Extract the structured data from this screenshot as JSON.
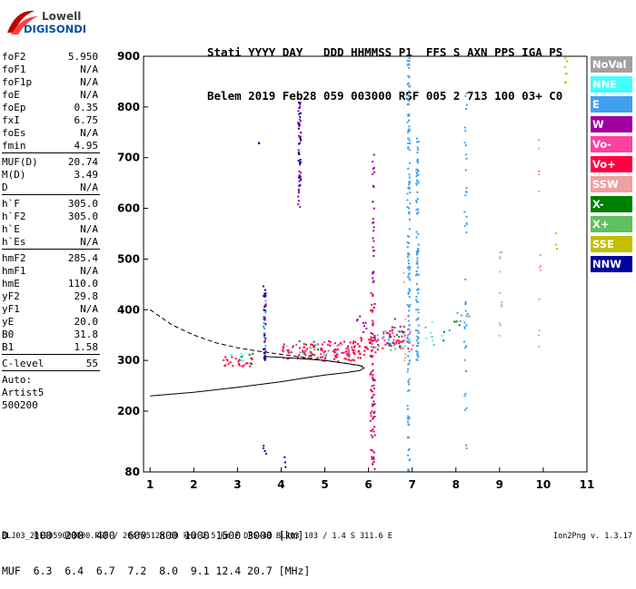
{
  "logo": {
    "line1": "Lowell",
    "line2": "DIGISONDE"
  },
  "header": {
    "line1": "Stati YYYY DAY   DDD HHMMSS P1  FFS S AXN PPS IGA PS",
    "line2": "Belem 2019 Feb28 059 003000 RSF 005 2 713 100 03+ C0"
  },
  "params": [
    {
      "name": "foF2",
      "value": "5.950"
    },
    {
      "name": "foF1",
      "value": "N/A"
    },
    {
      "name": "foF1p",
      "value": "N/A"
    },
    {
      "name": "foE",
      "value": "N/A"
    },
    {
      "name": "foEp",
      "value": "0.35"
    },
    {
      "name": "fxI",
      "value": "6.75"
    },
    {
      "name": "foEs",
      "value": "N/A"
    },
    {
      "name": "fmin",
      "value": "4.95"
    },
    {
      "name": "MUF(D)",
      "value": "20.74"
    },
    {
      "name": "M(D)",
      "value": "3.49"
    },
    {
      "name": "D",
      "value": "N/A"
    },
    {
      "name": "h`F",
      "value": "305.0"
    },
    {
      "name": "h`F2",
      "value": "305.0"
    },
    {
      "name": "h`E",
      "value": "N/A"
    },
    {
      "name": "h`Es",
      "value": "N/A"
    },
    {
      "name": "hmF2",
      "value": "285.4"
    },
    {
      "name": "hmF1",
      "value": "N/A"
    },
    {
      "name": "hmE",
      "value": "110.0"
    },
    {
      "name": "yF2",
      "value": "29.8"
    },
    {
      "name": "yF1",
      "value": "N/A"
    },
    {
      "name": "yE",
      "value": "20.0"
    },
    {
      "name": "B0",
      "value": "31.8"
    },
    {
      "name": "B1",
      "value": "1.58"
    },
    {
      "name": "C-level",
      "value": "55"
    },
    {
      "name": "Auto:",
      "value": ""
    },
    {
      "name": "Artist5",
      "value": ""
    },
    {
      "name": "500200",
      "value": ""
    }
  ],
  "legend": [
    {
      "label": "NoVal",
      "color": "#a0a0a0"
    },
    {
      "label": "NNE",
      "color": "#40ffff"
    },
    {
      "label": "E",
      "color": "#40a0f0"
    },
    {
      "label": "W",
      "color": "#a000a0"
    },
    {
      "label": "Vo-",
      "color": "#ff40a0"
    },
    {
      "label": "Vo+",
      "color": "#ff0040"
    },
    {
      "label": "SSW",
      "color": "#f0a0a0"
    },
    {
      "label": "X-",
      "color": "#008000"
    },
    {
      "label": "X+",
      "color": "#60c060"
    },
    {
      "label": "SSE",
      "color": "#c0c000"
    },
    {
      "label": "NNW",
      "color": "#0000a0"
    }
  ],
  "muf_table": {
    "d_label": "D",
    "d_values": "100  200  400  600  800 1000 1500 3000 [km]",
    "muf_label": "MUF",
    "muf_values": "6.3  6.4  6.7  7.2  8.0  9.1 12.4 20.7 [MHz]"
  },
  "footer": "BLJ03_2019059003000.RSF / 204fx512h 50 kHz 2.5 km / DPS-4D BLJ03 103 / 1.4 S 311.6 E",
  "version": "Ion2Png v. 1.3.17",
  "chart_data": {
    "type": "scatter",
    "x_ticks": [
      "1",
      "2",
      "3",
      "4",
      "5",
      "6",
      "7",
      "8",
      "9",
      "10",
      "11"
    ],
    "y_ticks": [
      "80",
      "200",
      "300",
      "400",
      "500",
      "600",
      "700",
      "800",
      "900"
    ],
    "xlim": [
      0.85,
      11.0
    ],
    "ylim": [
      80,
      900
    ],
    "x_unit": "MHz",
    "y_unit": "km",
    "grid": false,
    "profile_curve": [
      [
        1.0,
        400
      ],
      [
        1.5,
        370
      ],
      [
        2.0,
        350
      ],
      [
        2.5,
        335
      ],
      [
        3.0,
        325
      ],
      [
        3.5,
        318
      ],
      [
        4.0,
        312
      ],
      [
        4.5,
        306
      ],
      [
        5.0,
        300
      ],
      [
        5.5,
        294
      ],
      [
        5.85,
        289
      ],
      [
        5.9,
        287
      ]
    ],
    "ordinary_trace": [
      [
        1.0,
        230
      ],
      [
        2.0,
        237
      ],
      [
        3.0,
        247
      ],
      [
        4.0,
        258
      ],
      [
        4.5,
        265
      ],
      [
        5.0,
        271
      ],
      [
        5.5,
        276
      ],
      [
        5.8,
        280
      ],
      [
        5.9,
        285
      ],
      [
        5.8,
        290
      ],
      [
        5.4,
        295
      ],
      [
        5.0,
        300
      ],
      [
        4.5,
        303
      ],
      [
        4.0,
        306
      ],
      [
        3.6,
        308
      ]
    ],
    "series": [
      {
        "name": "NNE",
        "clusters": [
          [
            3.0,
            305,
            0.25,
            10,
            6
          ],
          [
            4.4,
            322,
            0.5,
            15,
            8
          ],
          [
            5.3,
            320,
            0.4,
            15,
            6
          ],
          [
            6.7,
            345,
            0.3,
            20,
            6
          ],
          [
            7.5,
            360,
            0.4,
            20,
            5
          ]
        ]
      },
      {
        "name": "E",
        "columns": [
          [
            6.9,
            80,
            900,
            150
          ],
          [
            7.1,
            300,
            750,
            90
          ],
          [
            8.2,
            120,
            830,
            40
          ],
          [
            3.6,
            300,
            430,
            20
          ]
        ],
        "clusters": [
          [
            6.3,
            340,
            0.3,
            15,
            10
          ],
          [
            8.0,
            380,
            0.3,
            20,
            8
          ]
        ]
      },
      {
        "name": "W",
        "columns": [
          [
            6.1,
            80,
            750,
            70
          ],
          [
            4.4,
            600,
            820,
            30
          ],
          [
            3.6,
            300,
            440,
            15
          ]
        ],
        "clusters": [
          [
            5.9,
            370,
            0.2,
            20,
            10
          ],
          [
            6.7,
            360,
            0.2,
            25,
            8
          ]
        ]
      },
      {
        "name": "Vo-",
        "clusters": [
          [
            4.4,
            320,
            0.4,
            15,
            15
          ],
          [
            5.2,
            320,
            0.4,
            20,
            20
          ],
          [
            6.6,
            345,
            0.3,
            15,
            10
          ],
          [
            6.9,
            340,
            0.2,
            20,
            6
          ]
        ]
      },
      {
        "name": "Vo+",
        "columns": [
          [
            6.05,
            80,
            450,
            40
          ]
        ],
        "clusters": [
          [
            3.0,
            300,
            0.35,
            10,
            25
          ],
          [
            4.4,
            320,
            0.4,
            15,
            35
          ],
          [
            5.3,
            320,
            0.5,
            20,
            60
          ],
          [
            5.9,
            330,
            0.3,
            20,
            35
          ],
          [
            6.6,
            345,
            0.3,
            20,
            25
          ]
        ]
      },
      {
        "name": "SSW",
        "columns": [
          [
            9.0,
            350,
            540,
            12
          ],
          [
            9.9,
            300,
            800,
            14
          ],
          [
            6.8,
            300,
            480,
            10
          ]
        ]
      },
      {
        "name": "X-",
        "clusters": [
          [
            3.2,
            305,
            0.2,
            10,
            5
          ],
          [
            4.6,
            325,
            0.3,
            15,
            6
          ],
          [
            6.6,
            350,
            0.3,
            25,
            6
          ],
          [
            7.8,
            360,
            0.3,
            20,
            5
          ]
        ]
      },
      {
        "name": "X+",
        "clusters": [
          [
            5.0,
            320,
            0.4,
            15,
            6
          ],
          [
            6.4,
            340,
            0.3,
            20,
            6
          ],
          [
            7.3,
            350,
            0.3,
            25,
            4
          ]
        ]
      },
      {
        "name": "SSE",
        "columns": [
          [
            10.5,
            850,
            900,
            8
          ],
          [
            10.3,
            500,
            560,
            3
          ]
        ]
      },
      {
        "name": "NNW",
        "columns": [
          [
            4.4,
            640,
            820,
            25
          ],
          [
            3.6,
            300,
            450,
            18
          ]
        ],
        "clusters": [
          [
            3.6,
            120,
            0.05,
            30,
            4
          ],
          [
            4.1,
            110,
            0.05,
            30,
            3
          ],
          [
            3.5,
            730,
            0.03,
            5,
            2
          ]
        ]
      }
    ]
  }
}
